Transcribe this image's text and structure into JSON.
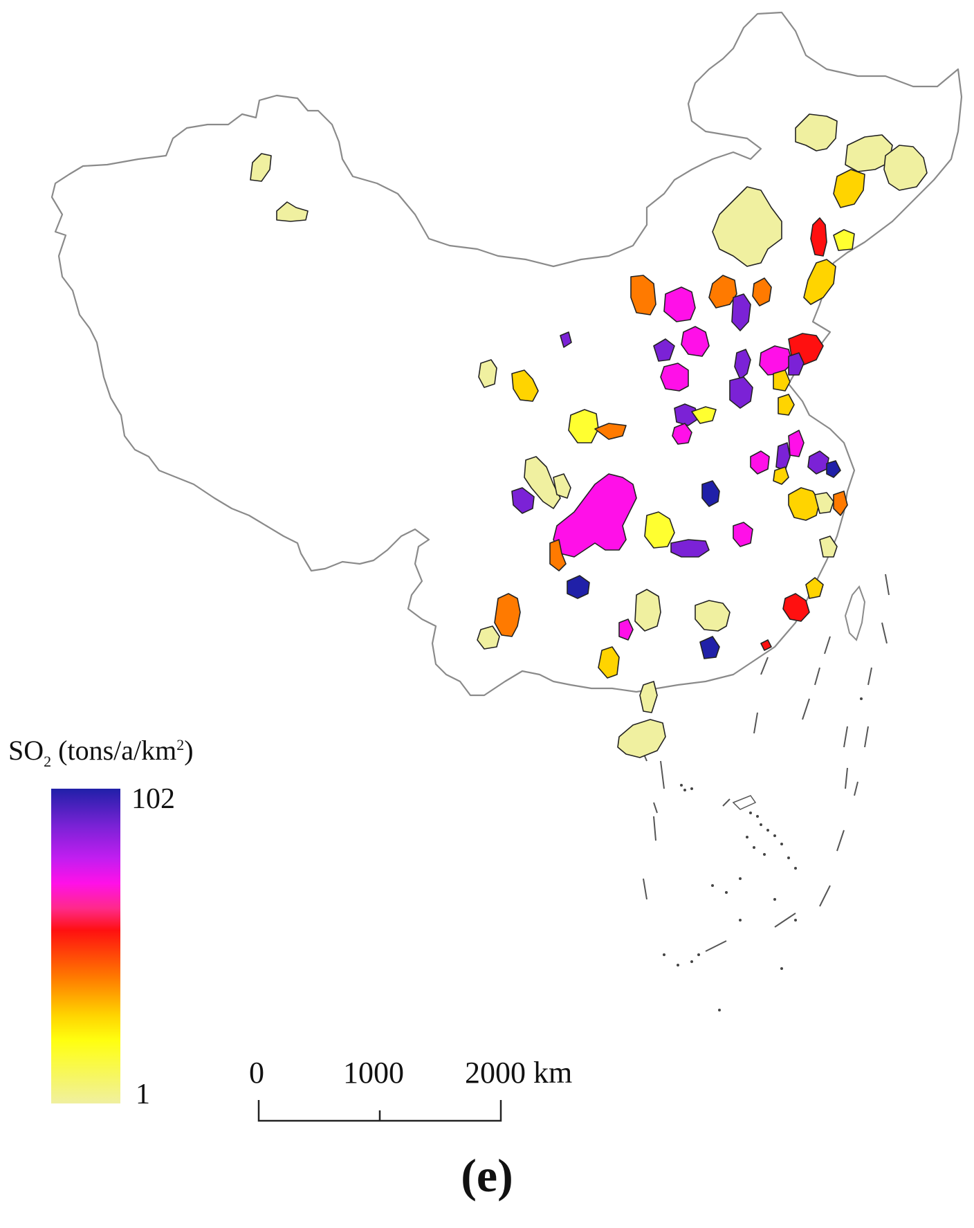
{
  "legend": {
    "title_main": "SO",
    "title_sub": "2",
    "title_rest": " (tons/a/km",
    "title_sup": "2",
    "title_end": ")",
    "max_label": "102",
    "min_label": "1",
    "min_value": 1,
    "max_value": 102,
    "gradient_stops": [
      "#2020a8",
      "#7b22d6",
      "#c11ef0",
      "#ff10e8",
      "#ff2a8a",
      "#ff1010",
      "#ff7a00",
      "#ffd400",
      "#ffff10",
      "#f0f0a0"
    ]
  },
  "scale_bar": {
    "labels": [
      "0",
      "1000",
      "2000 km"
    ]
  },
  "panel_label": "(e)",
  "colors": {
    "outline": "#888888",
    "region_stroke": "#222222"
  }
}
